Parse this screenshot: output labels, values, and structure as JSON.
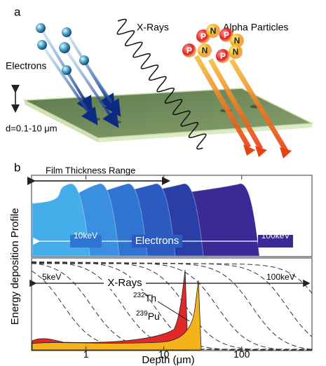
{
  "panel_a": {
    "label": "a",
    "electrons": "Electrons",
    "xrays": "X-Rays",
    "alpha": "Alpha Particles",
    "thickness": "d=0.1-10 μm",
    "nucleons": [
      "P",
      "N",
      "P",
      "N",
      "P",
      "N",
      "P",
      "N"
    ]
  },
  "panel_b": {
    "label": "b",
    "film_range": "Film Thickness Range",
    "y_label": "Energy deposition Profile",
    "x_label": "Depth (μm)",
    "xscale": "log",
    "xlim": [
      0.2,
      800
    ],
    "xticks": [
      1,
      10,
      100
    ],
    "electrons": {
      "low": "10keV",
      "name": "Electrons",
      "high": "100keV"
    },
    "xrays": {
      "low": "5keV",
      "name": "X-Rays",
      "high": "100keV"
    },
    "alpha": [
      {
        "mass": "232",
        "element": "Th"
      },
      {
        "mass": "239",
        "element": "Pu"
      }
    ]
  }
}
